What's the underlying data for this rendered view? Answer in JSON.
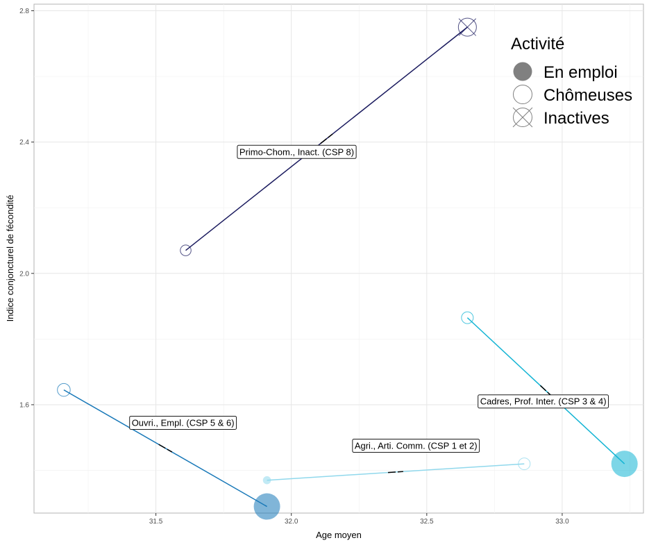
{
  "chart_data": {
    "type": "scatter",
    "xlabel": "Age moyen",
    "ylabel": "Indice conjoncturel de fécondité",
    "xlim": [
      31.05,
      33.3
    ],
    "ylim": [
      1.27,
      2.82
    ],
    "x_ticks": [
      31.5,
      32.0,
      32.5,
      33.0
    ],
    "x_tick_labels": [
      "31.5",
      "32.0",
      "32.5",
      "33.0"
    ],
    "y_ticks": [
      1.6,
      2.0,
      2.4,
      2.8
    ],
    "y_tick_labels": [
      "1.6",
      "2.0",
      "2.4",
      "2.8"
    ],
    "grid": true,
    "legend": {
      "title": "Activité",
      "placement": "top-right",
      "entries": [
        {
          "label": "En emploi",
          "shape": "filled-circle"
        },
        {
          "label": "Chômeuses",
          "shape": "open-circle"
        },
        {
          "label": "Inactives",
          "shape": "crossed-circle"
        }
      ]
    },
    "groups": [
      {
        "label": "Primo-Chom., Inact. (CSP 8)",
        "color": "#1a1a5e",
        "points": [
          {
            "activity": "Chômeuses",
            "x": 31.61,
            "y": 2.07,
            "size": 0.25
          },
          {
            "activity": "Inactives",
            "x": 32.65,
            "y": 2.75,
            "size": 0.6
          }
        ],
        "label_at": [
          32.02,
          2.37
        ]
      },
      {
        "label": "Ouvri., Empl. (CSP 5 & 6)",
        "color": "#1878b8",
        "points": [
          {
            "activity": "Chômeuses",
            "x": 31.16,
            "y": 1.645,
            "size": 0.35
          },
          {
            "activity": "En emploi",
            "x": 31.91,
            "y": 1.29,
            "size": 1.0
          }
        ],
        "label_at": [
          31.6,
          1.545
        ]
      },
      {
        "label": "Agri., Arti. Comm. (CSP 1 et 2)",
        "color": "#90d8ec",
        "points": [
          {
            "activity": "En emploi",
            "x": 31.91,
            "y": 1.37,
            "size": 0.12
          },
          {
            "activity": "Chômeuses",
            "x": 32.86,
            "y": 1.42,
            "size": 0.3
          }
        ],
        "label_at": [
          32.46,
          1.475
        ]
      },
      {
        "label": "Cadres, Prof. Inter. (CSP 3 & 4)",
        "color": "#13b4d4",
        "points": [
          {
            "activity": "Chômeuses",
            "x": 32.65,
            "y": 1.865,
            "size": 0.3
          },
          {
            "activity": "En emploi",
            "x": 33.23,
            "y": 1.42,
            "size": 1.0
          }
        ],
        "label_at": [
          32.93,
          1.61
        ]
      }
    ]
  }
}
